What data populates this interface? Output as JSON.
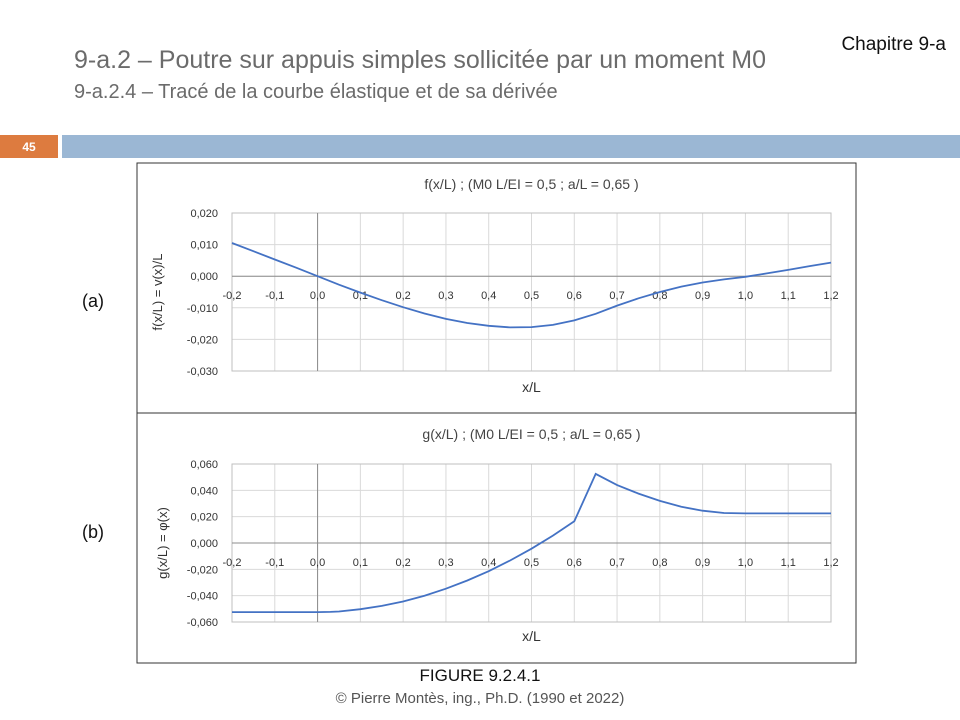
{
  "header": {
    "chapter": "Chapitre 9-a",
    "title": "9-a.2 – Poutre sur appuis simples sollicitée par un moment M0",
    "subtitle": "9-a.2.4 – Tracé de la courbe élastique et de sa dérivée",
    "page_number": "45",
    "accent_color": "#dd7b3f",
    "bar_color": "#9bb7d4"
  },
  "panels": {
    "a_label": "(a)",
    "b_label": "(b)"
  },
  "figure_caption": "FIGURE 9.2.4.1",
  "copyright": "© Pierre Montès, ing., Ph.D. (1990 et 2022)",
  "chart_data": [
    {
      "type": "line",
      "title": "f(x/L)  ;  (M0 L/EI = 0,5 ;  a/L = 0,65 )",
      "xlabel": "x/L",
      "ylabel": "f(x/L) = v(x)/L",
      "xlim": [
        -0.2,
        1.2
      ],
      "ylim": [
        -0.03,
        0.02
      ],
      "xticks": [
        "-0,2",
        "-0,1",
        "0,0",
        "0,1",
        "0,2",
        "0,3",
        "0,4",
        "0,5",
        "0,6",
        "0,7",
        "0,8",
        "0,9",
        "1,0",
        "1,1",
        "1,2"
      ],
      "yticks": [
        "0,020",
        "0,010",
        "0,000",
        "-0,010",
        "-0,020",
        "-0,030"
      ],
      "grid": true,
      "line_color": "#4472c4",
      "series": [
        {
          "x": [
            -0.2,
            -0.15,
            -0.1,
            -0.05,
            0.0,
            0.05,
            0.1,
            0.15,
            0.2,
            0.25,
            0.3,
            0.35,
            0.4,
            0.45,
            0.5,
            0.55,
            0.6,
            0.65,
            0.7,
            0.75,
            0.8,
            0.85,
            0.9,
            0.95,
            1.0,
            1.05,
            1.1,
            1.15,
            1.2
          ],
          "values": [
            0.0105,
            0.0079,
            0.0053,
            0.0027,
            0.0,
            -0.0027,
            -0.0052,
            -0.0076,
            -0.0098,
            -0.0118,
            -0.0135,
            -0.0148,
            -0.0157,
            -0.0162,
            -0.0161,
            -0.0154,
            -0.014,
            -0.0119,
            -0.0093,
            -0.007,
            -0.005,
            -0.0033,
            -0.002,
            -0.001,
            -0.0002,
            0.0009,
            0.002,
            0.0032,
            0.0043
          ]
        }
      ]
    },
    {
      "type": "line",
      "title": "g(x/L)  ;   (M0 L/EI = 0,5 ;  a/L = 0,65 )",
      "xlabel": "x/L",
      "ylabel": "g(x/L) = φ(x)",
      "xlim": [
        -0.2,
        1.2
      ],
      "ylim": [
        -0.06,
        0.06
      ],
      "xticks": [
        "-0,2",
        "-0,1",
        "0,0",
        "0,1",
        "0,2",
        "0,3",
        "0,4",
        "0,5",
        "0,6",
        "0,7",
        "0,8",
        "0,9",
        "1,0",
        "1,1",
        "1,2"
      ],
      "yticks": [
        "0,060",
        "0,040",
        "0,020",
        "0,000",
        "-0,020",
        "-0,040",
        "-0,060"
      ],
      "grid": true,
      "line_color": "#4472c4",
      "series": [
        {
          "x": [
            -0.2,
            -0.1,
            0.0,
            0.03,
            0.05,
            0.1,
            0.15,
            0.2,
            0.25,
            0.3,
            0.35,
            0.4,
            0.45,
            0.5,
            0.55,
            0.6,
            0.65,
            0.7,
            0.75,
            0.8,
            0.85,
            0.9,
            0.95,
            1.0,
            1.1,
            1.2
          ],
          "values": [
            -0.0525,
            -0.0525,
            -0.0525,
            -0.0523,
            -0.052,
            -0.0503,
            -0.0478,
            -0.0444,
            -0.04,
            -0.0347,
            -0.0285,
            -0.0214,
            -0.0133,
            -0.0043,
            0.0056,
            0.0165,
            0.0525,
            0.044,
            0.0375,
            0.032,
            0.0275,
            0.0245,
            0.0228,
            0.0225,
            0.0225,
            0.0225
          ]
        }
      ]
    }
  ]
}
